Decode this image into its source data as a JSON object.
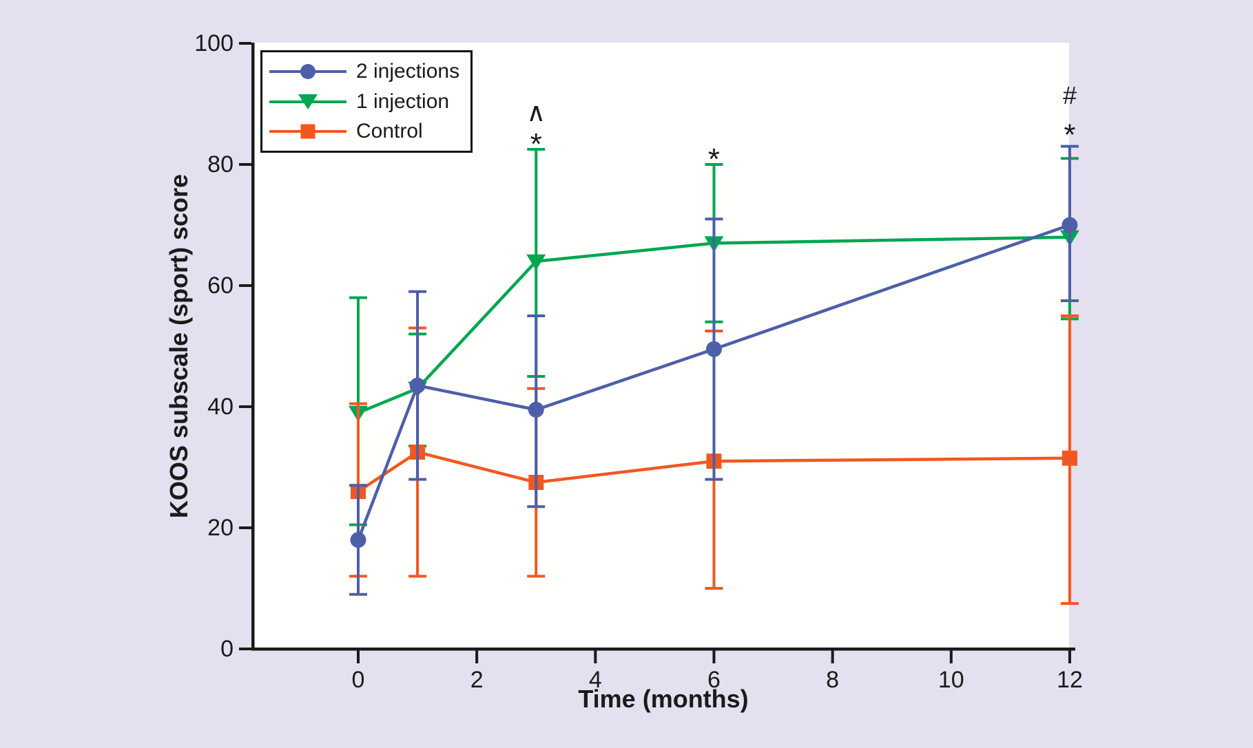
{
  "page": {
    "background_color": "#E4E0EF",
    "plot_background_color": "#FFFFFE",
    "axis_color": "#1A1A1A"
  },
  "legend": {
    "items": [
      {
        "label": "2 injections",
        "marker": "circle",
        "color": "#4D5FA9"
      },
      {
        "label": "1 injection",
        "marker": "triangle-down",
        "color": "#00A651"
      },
      {
        "label": "Control",
        "marker": "square",
        "color": "#F1581F"
      }
    ]
  },
  "chart_data": {
    "type": "line",
    "title": "",
    "xlabel": "Time (months)",
    "ylabel": "KOOS subscale (sport) score",
    "x_ticks": [
      0,
      2,
      4,
      6,
      8,
      10,
      12
    ],
    "y_ticks": [
      0,
      20,
      40,
      60,
      80,
      100
    ],
    "ylim": [
      0,
      100
    ],
    "xlim": [
      -1.8,
      12
    ],
    "grid": false,
    "legend_position": "top-left",
    "error_bars": true,
    "series": [
      {
        "name": "1 injection",
        "color": "#00A651",
        "marker": "triangle-down",
        "x": [
          0,
          1,
          3,
          6,
          12
        ],
        "y": [
          39,
          43,
          64,
          67,
          68
        ],
        "err_low": [
          20.5,
          33.5,
          45,
          54,
          54.5
        ],
        "err_high": [
          58,
          52,
          82.5,
          80,
          81
        ]
      },
      {
        "name": "Control",
        "color": "#F1581F",
        "marker": "square",
        "x": [
          0,
          1,
          3,
          6,
          12
        ],
        "y": [
          26,
          32.5,
          27.5,
          31,
          31.5
        ],
        "err_low": [
          12,
          12,
          12,
          10,
          7.5
        ],
        "err_high": [
          40.5,
          53,
          43,
          52.5,
          55
        ]
      },
      {
        "name": "2 injections",
        "color": "#4D5FA9",
        "marker": "circle",
        "x": [
          0,
          1,
          3,
          6,
          12
        ],
        "y": [
          18,
          43.5,
          39.5,
          49.5,
          70
        ],
        "err_low": [
          9,
          28,
          23.5,
          28,
          57.5
        ],
        "err_high": [
          27,
          59,
          55,
          71,
          83
        ]
      }
    ],
    "annotations": [
      {
        "symbol": "∧",
        "month": 3,
        "score": 88.5
      },
      {
        "symbol": "*",
        "month": 3,
        "score": 84
      },
      {
        "symbol": "*",
        "month": 6,
        "score": 81.5
      },
      {
        "symbol": "#",
        "month": 12,
        "score": 91.5
      },
      {
        "symbol": "*",
        "month": 12,
        "score": 85.5
      }
    ]
  }
}
